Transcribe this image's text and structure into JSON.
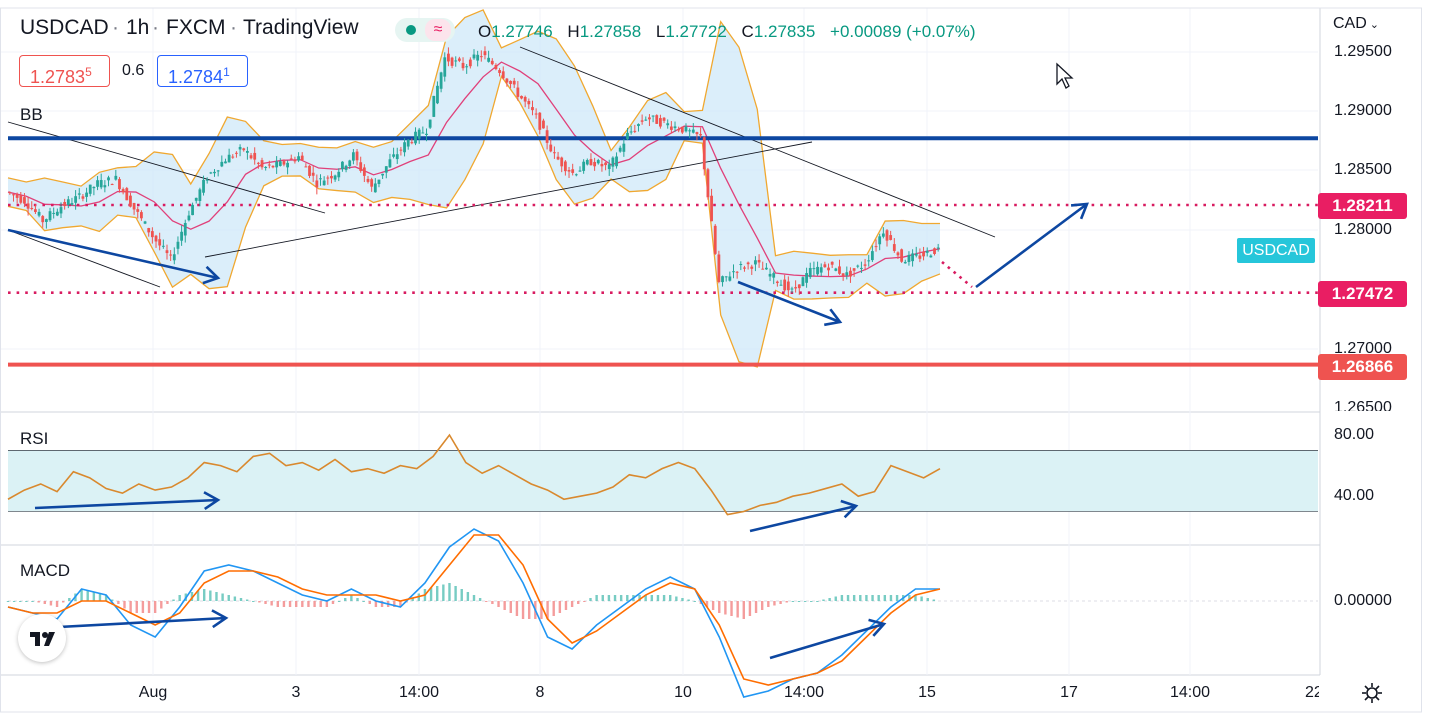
{
  "header": {
    "symbol": "USDCAD",
    "separator": "·",
    "interval": "1h",
    "exchange": "FXCM",
    "platform": "TradingView",
    "ohlc": {
      "o_label": "O",
      "o_value": "1.27746",
      "h_label": "H",
      "h_value": "1.27858",
      "l_label": "L",
      "l_value": "1.27722",
      "c_label": "C",
      "c_value": "1.27835",
      "change": "+0.00089 (+0.07%)"
    },
    "sell_price": "1.2783",
    "sell_price_pip": "5",
    "spread": "0.6",
    "buy_price": "1.2784",
    "buy_price_pip": "1"
  },
  "currency_menu": "CAD",
  "symbol_tag": "USDCAD",
  "panes": {
    "main_label": "BB",
    "rsi_label": "RSI",
    "macd_label": "MACD"
  },
  "price_axis_ticks": [
    "1.29500",
    "1.29000",
    "1.28500",
    "1.28000",
    "1.27000",
    "1.26500"
  ],
  "price_tags": [
    {
      "value": "1.28773",
      "color": "#0d47a1"
    },
    {
      "value": "1.28211",
      "color": "#e91e63"
    },
    {
      "value": "1.27472",
      "color": "#e91e63"
    },
    {
      "value": "1.26866",
      "color": "#ef5350"
    }
  ],
  "rsi_axis_ticks": [
    "80.00",
    "40.00"
  ],
  "macd_axis_ticks": [
    "0.00000"
  ],
  "time_axis_ticks": [
    "Aug",
    "3",
    "14:00",
    "8",
    "10",
    "14:00",
    "15",
    "17",
    "14:00",
    "22"
  ],
  "colors": {
    "up_candle": "#26a69a",
    "down_candle": "#ef5350",
    "bb_band": "#f0a830",
    "bb_fill": "#cfe8f8",
    "bb_basis": "#e0407a",
    "rsi_line": "#d9892e",
    "rsi_band": "#dbf2f5",
    "macd_line": "#2196f3",
    "signal_line": "#ff6d00",
    "resistance": "#0d47a1",
    "support_line": "#ef5350",
    "dotted_level": "#d81b60",
    "arrow": "#0d47a1"
  },
  "chart_data": {
    "type": "candlestick",
    "symbol": "USDCAD",
    "interval": "1h",
    "ylim": [
      1.264,
      1.297
    ],
    "horizontal_levels": [
      {
        "price": 1.28773,
        "style": "solid",
        "color": "#0d47a1"
      },
      {
        "price": 1.28211,
        "style": "dotted",
        "color": "#d81b60"
      },
      {
        "price": 1.27472,
        "style": "dotted",
        "color": "#d81b60"
      },
      {
        "price": 1.26866,
        "style": "solid",
        "color": "#ef5350"
      }
    ],
    "close_path": [
      1.2832,
      1.2825,
      1.2808,
      1.282,
      1.2828,
      1.2839,
      1.2843,
      1.2818,
      1.2795,
      1.2775,
      1.2815,
      1.2845,
      1.286,
      1.2868,
      1.2852,
      1.2855,
      1.2862,
      1.284,
      1.2848,
      1.2863,
      1.2835,
      1.2858,
      1.2875,
      1.2885,
      1.2945,
      1.2938,
      1.2948,
      1.2935,
      1.2915,
      1.2895,
      1.2862,
      1.2848,
      1.2858,
      1.2852,
      1.288,
      1.2895,
      1.289,
      1.2885,
      1.2878,
      1.2755,
      1.2768,
      1.2772,
      1.276,
      1.2748,
      1.2765,
      1.277,
      1.2762,
      1.2772,
      1.28,
      1.2775,
      1.2778,
      1.2784
    ],
    "rsi": {
      "ylim": [
        20,
        90
      ],
      "band": [
        30,
        70
      ],
      "values": [
        38,
        44,
        48,
        43,
        56,
        52,
        45,
        42,
        48,
        44,
        46,
        52,
        62,
        60,
        56,
        66,
        68,
        60,
        62,
        57,
        64,
        56,
        58,
        55,
        60,
        58,
        66,
        80,
        62,
        55,
        60,
        54,
        48,
        44,
        38,
        40,
        42,
        46,
        54,
        52,
        58,
        62,
        58,
        44,
        28,
        30,
        34,
        36,
        40,
        42,
        45,
        48,
        40,
        43,
        60,
        56,
        52,
        58
      ]
    },
    "macd": {
      "ylim": [
        -0.0018,
        0.0012
      ],
      "macd": [
        -0.0001,
        -0.0002,
        -0.0003,
        0.0002,
        0.0001,
        -0.0004,
        -0.0006,
        -0.0001,
        0.0005,
        0.0006,
        0.0005,
        0.0003,
        0.0001,
        0.0,
        0.0002,
        0.0,
        -0.0001,
        0.0003,
        0.0009,
        0.0012,
        0.001,
        0.0003,
        -0.0006,
        -0.0008,
        -0.0004,
        -0.0001,
        0.0002,
        0.0004,
        0.0002,
        -0.0006,
        -0.0016,
        -0.0015,
        -0.0013,
        -0.0012,
        -0.0009,
        -0.0005,
        -0.0001,
        0.0002,
        0.0002
      ],
      "signal": [
        -0.0001,
        -0.0002,
        -0.0002,
        0.0,
        0.0,
        -0.0002,
        -0.0004,
        -0.0002,
        0.0003,
        0.0005,
        0.0005,
        0.0004,
        0.0002,
        0.0001,
        0.0001,
        0.0001,
        0.0,
        0.0001,
        0.0006,
        0.0011,
        0.0011,
        0.0006,
        -0.0003,
        -0.0007,
        -0.0005,
        -0.0002,
        0.0001,
        0.0003,
        0.0002,
        -0.0004,
        -0.0013,
        -0.0014,
        -0.0013,
        -0.0012,
        -0.001,
        -0.0006,
        -0.0002,
        0.0001,
        0.0002
      ]
    }
  }
}
